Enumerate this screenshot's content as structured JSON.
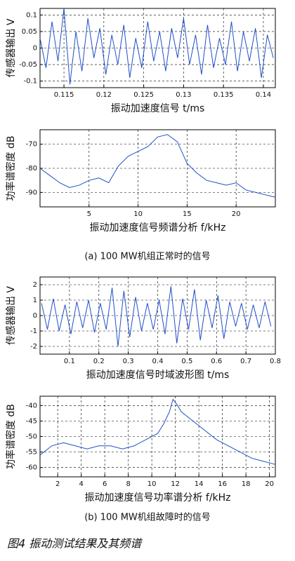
{
  "chart_data": [
    {
      "type": "line",
      "ylabel": "传感器输出 V",
      "xlabel": "振动加速度信号 t/ms",
      "color": "#1f4fc8",
      "grid": true,
      "x": [
        0.112,
        0.11275,
        0.1135,
        0.11425,
        0.115,
        0.11575,
        0.1165,
        0.11725,
        0.118,
        0.11875,
        0.1195,
        0.12025,
        0.121,
        0.12175,
        0.1225,
        0.12325,
        0.124,
        0.12475,
        0.1255,
        0.12625,
        0.127,
        0.12775,
        0.1285,
        0.12925,
        0.13,
        0.13075,
        0.1315,
        0.13225,
        0.133,
        0.13375,
        0.1345,
        0.13525,
        0.136,
        0.13675,
        0.1375,
        0.13825,
        0.139,
        0.13975,
        0.1405,
        0.14125
      ],
      "values": [
        0.03,
        -0.06,
        0.08,
        -0.04,
        0.12,
        -0.11,
        0.05,
        -0.07,
        0.09,
        -0.03,
        0.06,
        -0.08,
        0.04,
        -0.05,
        0.07,
        -0.09,
        0.03,
        -0.06,
        0.08,
        -0.04,
        0.05,
        -0.07,
        0.06,
        -0.03,
        0.09,
        -0.05,
        0.04,
        -0.08,
        0.07,
        -0.06,
        0.03,
        -0.05,
        0.08,
        -0.07,
        0.05,
        -0.04,
        0.06,
        -0.09,
        0.04,
        -0.03
      ],
      "xlim": [
        0.112,
        0.1415
      ],
      "xticks": [
        0.115,
        0.12,
        0.125,
        0.13,
        0.135,
        0.14
      ],
      "ylim": [
        -0.12,
        0.12
      ],
      "yticks": [
        0.1,
        0.05,
        0,
        -0.05,
        -0.1
      ]
    },
    {
      "type": "line",
      "ylabel": "功率谱密度 dB",
      "xlabel": "振动加速度信号频谱分析 f/kHz",
      "color": "#1f4fc8",
      "grid": true,
      "x": [
        0,
        1,
        2,
        3,
        4,
        5,
        6,
        7,
        8,
        9,
        10,
        11,
        12,
        13,
        14,
        15,
        16,
        17,
        18,
        19,
        20,
        21,
        22,
        23,
        24
      ],
      "values": [
        -80,
        -83,
        -86,
        -88,
        -87,
        -85,
        -84,
        -86,
        -79,
        -75,
        -73,
        -71,
        -67,
        -66,
        -69,
        -78,
        -82,
        -85,
        -86,
        -87,
        -86,
        -89,
        -90,
        -91,
        -92
      ],
      "xlim": [
        0,
        24
      ],
      "xticks": [
        5,
        10,
        15,
        20
      ],
      "ylim": [
        -96,
        -64
      ],
      "yticks": [
        -70,
        -80,
        -90
      ]
    },
    {
      "type": "line",
      "ylabel": "传感器输出 V",
      "xlabel": "振动加速度信号时域波形图 t/ms",
      "color": "#1f4fc8",
      "grid": true,
      "x": [
        0.005,
        0.025,
        0.045,
        0.065,
        0.085,
        0.105,
        0.125,
        0.145,
        0.165,
        0.185,
        0.205,
        0.225,
        0.245,
        0.265,
        0.285,
        0.305,
        0.325,
        0.345,
        0.365,
        0.385,
        0.405,
        0.425,
        0.445,
        0.465,
        0.485,
        0.505,
        0.525,
        0.545,
        0.565,
        0.585,
        0.605,
        0.625,
        0.645,
        0.665,
        0.685,
        0.705,
        0.725,
        0.745,
        0.765,
        0.785
      ],
      "values": [
        0.8,
        -0.9,
        1.1,
        -1.0,
        0.7,
        -1.2,
        0.9,
        -0.8,
        1.0,
        -1.1,
        0.8,
        -0.9,
        1.8,
        -2.0,
        1.6,
        -1.4,
        1.2,
        -1.0,
        0.8,
        -0.9,
        1.0,
        -1.2,
        1.9,
        -1.8,
        1.1,
        -0.9,
        1.7,
        -1.6,
        1.0,
        -0.8,
        1.3,
        -1.5,
        0.9,
        -0.7,
        0.8,
        -0.9,
        0.7,
        -0.8,
        0.9,
        -0.7
      ],
      "xlim": [
        0,
        0.8
      ],
      "xticks": [
        0.1,
        0.2,
        0.3,
        0.4,
        0.5,
        0.6,
        0.7,
        0.8
      ],
      "ylim": [
        -2.5,
        2.5
      ],
      "yticks": [
        2,
        1,
        0,
        -1,
        -2
      ]
    },
    {
      "type": "line",
      "ylabel": "功率谱密度 dB",
      "xlabel": "振动加速度信号功率谱分析 f/kHz",
      "color": "#1f4fc8",
      "grid": true,
      "x": [
        0.5,
        1.5,
        2.5,
        3.5,
        4.5,
        5.5,
        6.5,
        7.5,
        8.5,
        9.5,
        10.5,
        11,
        11.5,
        11.8,
        12.2,
        12.5,
        13.5,
        14.5,
        15.5,
        16.5,
        17.5,
        18.5,
        19.5,
        20.5
      ],
      "values": [
        -56,
        -53,
        -52,
        -53,
        -54,
        -53,
        -53,
        -54,
        -53,
        -51,
        -49,
        -46,
        -42,
        -38,
        -40,
        -42,
        -45,
        -48,
        -51,
        -53,
        -55,
        -57,
        -58,
        -59
      ],
      "xlim": [
        0.5,
        20.5
      ],
      "xticks": [
        2,
        4,
        6,
        8,
        10,
        12,
        14,
        16,
        18,
        20
      ],
      "ylim": [
        -63,
        -37
      ],
      "yticks": [
        -40,
        -45,
        -50,
        -55,
        -60
      ]
    }
  ],
  "figure": {
    "caption_a": "(a) 100 MW机组正常时的信号",
    "caption_b": "(b) 100 MW机组故障时的信号",
    "title": "图4  振动测试结果及其频谱"
  }
}
